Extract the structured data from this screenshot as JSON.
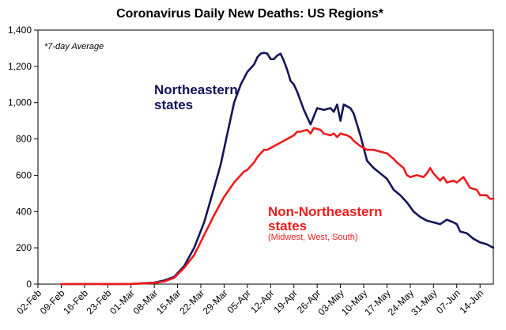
{
  "chart_data": {
    "type": "line",
    "title": "Coronavirus Daily New Deaths: US Regions*",
    "note": "*7-day Average",
    "xlabel": "",
    "ylabel": "",
    "ylim": [
      0,
      1400
    ],
    "yticks": [
      0,
      200,
      400,
      600,
      800,
      1000,
      1200,
      1400
    ],
    "ytick_labels": [
      "0",
      "200",
      "400",
      "600",
      "800",
      "1,000",
      "1,200",
      "1,400"
    ],
    "xticks": [
      "02-Feb",
      "09-Feb",
      "16-Feb",
      "23-Feb",
      "01-Mar",
      "08-Mar",
      "15-Mar",
      "22-Mar",
      "29-Mar",
      "05-Apr",
      "12-Apr",
      "19-Apr",
      "26-Apr",
      "03-May",
      "10-May",
      "17-May",
      "24-May",
      "31-May",
      "07-Jun",
      "14-Jun"
    ],
    "x_range_days": [
      0,
      137
    ],
    "colors": {
      "northeast": "#14145a",
      "other": "#ee1c1c"
    },
    "series": [
      {
        "name": "Northeastern states",
        "label_lines": [
          "Northeastern",
          "states"
        ],
        "color": "#14145a",
        "days": [
          7,
          28,
          35,
          38,
          41,
          44,
          47,
          50,
          53,
          55,
          57,
          59,
          61,
          63,
          65,
          66,
          67,
          68,
          69,
          70,
          71,
          72,
          73,
          74,
          75,
          76,
          77,
          78,
          80,
          82,
          84,
          86,
          88,
          89,
          90,
          91,
          92,
          93,
          94,
          95,
          97,
          99,
          101,
          103,
          105,
          107,
          109,
          111,
          113,
          115,
          117,
          119,
          121,
          123,
          125,
          126,
          127,
          129,
          131,
          133,
          135,
          137
        ],
        "values": [
          0,
          1,
          8,
          20,
          40,
          100,
          200,
          340,
          530,
          660,
          830,
          1000,
          1100,
          1170,
          1210,
          1250,
          1270,
          1275,
          1270,
          1240,
          1240,
          1260,
          1270,
          1230,
          1180,
          1120,
          1100,
          1060,
          960,
          880,
          970,
          960,
          970,
          950,
          990,
          900,
          990,
          980,
          970,
          940,
          820,
          680,
          640,
          610,
          580,
          520,
          490,
          450,
          400,
          370,
          350,
          340,
          330,
          355,
          340,
          330,
          290,
          280,
          250,
          230,
          220,
          200
        ]
      },
      {
        "name": "Non-Northeastern states",
        "label_lines": [
          "Non-Northeastern",
          "states"
        ],
        "sublabel": "(Midwest, West, South)",
        "color": "#ee1c1c",
        "days": [
          7,
          28,
          35,
          38,
          41,
          44,
          47,
          50,
          53,
          56,
          59,
          62,
          63,
          65,
          66,
          68,
          69,
          71,
          72,
          74,
          76,
          77,
          78,
          79,
          81,
          82,
          83,
          85,
          86,
          88,
          89,
          90,
          91,
          93,
          94,
          95,
          97,
          99,
          101,
          103,
          105,
          107,
          108,
          110,
          111,
          112,
          114,
          116,
          117,
          118,
          119,
          121,
          122,
          123,
          125,
          126,
          128,
          130,
          132,
          133,
          135,
          136,
          137
        ],
        "values": [
          0,
          1,
          6,
          15,
          35,
          90,
          160,
          270,
          380,
          480,
          560,
          620,
          630,
          670,
          700,
          740,
          740,
          760,
          770,
          790,
          810,
          820,
          840,
          840,
          850,
          830,
          860,
          850,
          830,
          820,
          830,
          810,
          830,
          820,
          810,
          790,
          760,
          740,
          740,
          730,
          720,
          690,
          670,
          640,
          600,
          590,
          600,
          590,
          610,
          640,
          610,
          570,
          590,
          560,
          570,
          560,
          590,
          530,
          520,
          490,
          490,
          470,
          470
        ]
      }
    ]
  }
}
